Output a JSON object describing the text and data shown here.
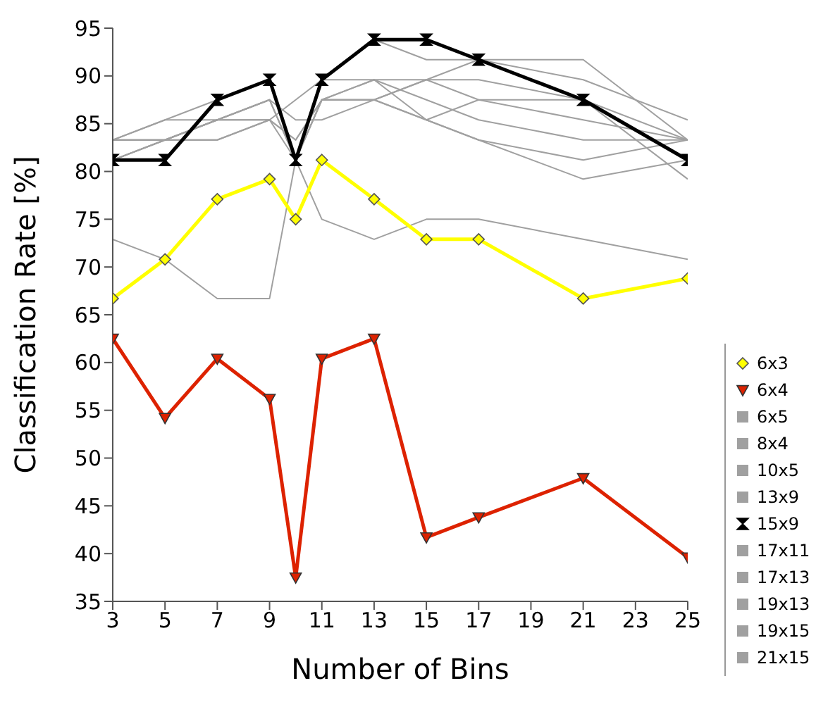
{
  "chart_data": {
    "type": "line",
    "xlabel": "Number of Bins",
    "ylabel": "Classification Rate [%]",
    "x": [
      3,
      5,
      7,
      9,
      10,
      11,
      13,
      15,
      17,
      21,
      25
    ],
    "xlim": [
      3,
      25
    ],
    "xticks": [
      3,
      5,
      7,
      9,
      11,
      13,
      15,
      17,
      19,
      21,
      23,
      25
    ],
    "ylim": [
      35,
      95
    ],
    "yticks": [
      35,
      40,
      45,
      50,
      55,
      60,
      65,
      70,
      75,
      80,
      85,
      90,
      95
    ],
    "grid": false,
    "legend": "right",
    "series": [
      {
        "name": "6x3",
        "color": "#ffff00",
        "marker": "diamond",
        "values": [
          66.7,
          70.8,
          77.1,
          79.2,
          75,
          81.2,
          77.1,
          72.9,
          72.9,
          66.7,
          68.8
        ]
      },
      {
        "name": "6x4",
        "color": "#dd2200",
        "marker": "triangle",
        "values": [
          62.5,
          54.2,
          60.4,
          56.2,
          37.5,
          60.4,
          62.5,
          41.7,
          43.8,
          47.9,
          39.6
        ]
      },
      {
        "name": "6x5",
        "color": "#a0a0a0",
        "marker": "none",
        "values": [
          83.3,
          85.4,
          85.4,
          85.4,
          83.3,
          87.5,
          87.5,
          85.4,
          87.5,
          87.5,
          79.2
        ]
      },
      {
        "name": "8x4",
        "color": "#a0a0a0",
        "marker": "none",
        "values": [
          83.3,
          83.3,
          83.3,
          85.4,
          87.5,
          89.6,
          89.6,
          89.6,
          89.6,
          87.5,
          83.3
        ]
      },
      {
        "name": "10x5",
        "color": "#a0a0a0",
        "marker": "none",
        "values": [
          81.2,
          83.3,
          85.4,
          87.5,
          81.2,
          87.5,
          89.6,
          85.4,
          83.3,
          81.2,
          83.3
        ]
      },
      {
        "name": "13x9",
        "color": "#a0a0a0",
        "marker": "none",
        "values": [
          83.3,
          85.4,
          87.5,
          89.6,
          81.2,
          89.6,
          93.8,
          91.7,
          91.7,
          89.6,
          85.4
        ]
      },
      {
        "name": "15x9",
        "color": "#000000",
        "marker": "cross",
        "values": [
          81.2,
          81.2,
          87.5,
          89.6,
          81.2,
          89.6,
          93.8,
          93.8,
          91.7,
          87.5,
          81.2
        ]
      },
      {
        "name": "17x11",
        "color": "#a0a0a0",
        "marker": "none",
        "values": [
          72.9,
          70.8,
          66.7,
          66.7,
          81.2,
          75,
          72.9,
          75,
          75,
          72.9,
          70.8
        ]
      },
      {
        "name": "17x13",
        "color": "#a0a0a0",
        "marker": "none",
        "values": [
          81.2,
          83.3,
          85.4,
          85.4,
          83.3,
          87.5,
          87.5,
          89.6,
          91.7,
          91.7,
          83.3
        ]
      },
      {
        "name": "19x13",
        "color": "#a0a0a0",
        "marker": "none",
        "values": [
          83.3,
          83.3,
          85.4,
          87.5,
          81.2,
          87.5,
          89.6,
          87.5,
          85.4,
          83.3,
          83.3
        ]
      },
      {
        "name": "19x15",
        "color": "#a0a0a0",
        "marker": "none",
        "values": [
          81.2,
          83.3,
          83.3,
          85.4,
          81.2,
          87.5,
          87.5,
          85.4,
          83.3,
          79.2,
          81.2
        ]
      },
      {
        "name": "21x15",
        "color": "#a0a0a0",
        "marker": "none",
        "values": [
          83.3,
          83.3,
          85.4,
          87.5,
          85.4,
          85.4,
          87.5,
          89.6,
          87.5,
          85.4,
          83.3
        ]
      }
    ]
  }
}
